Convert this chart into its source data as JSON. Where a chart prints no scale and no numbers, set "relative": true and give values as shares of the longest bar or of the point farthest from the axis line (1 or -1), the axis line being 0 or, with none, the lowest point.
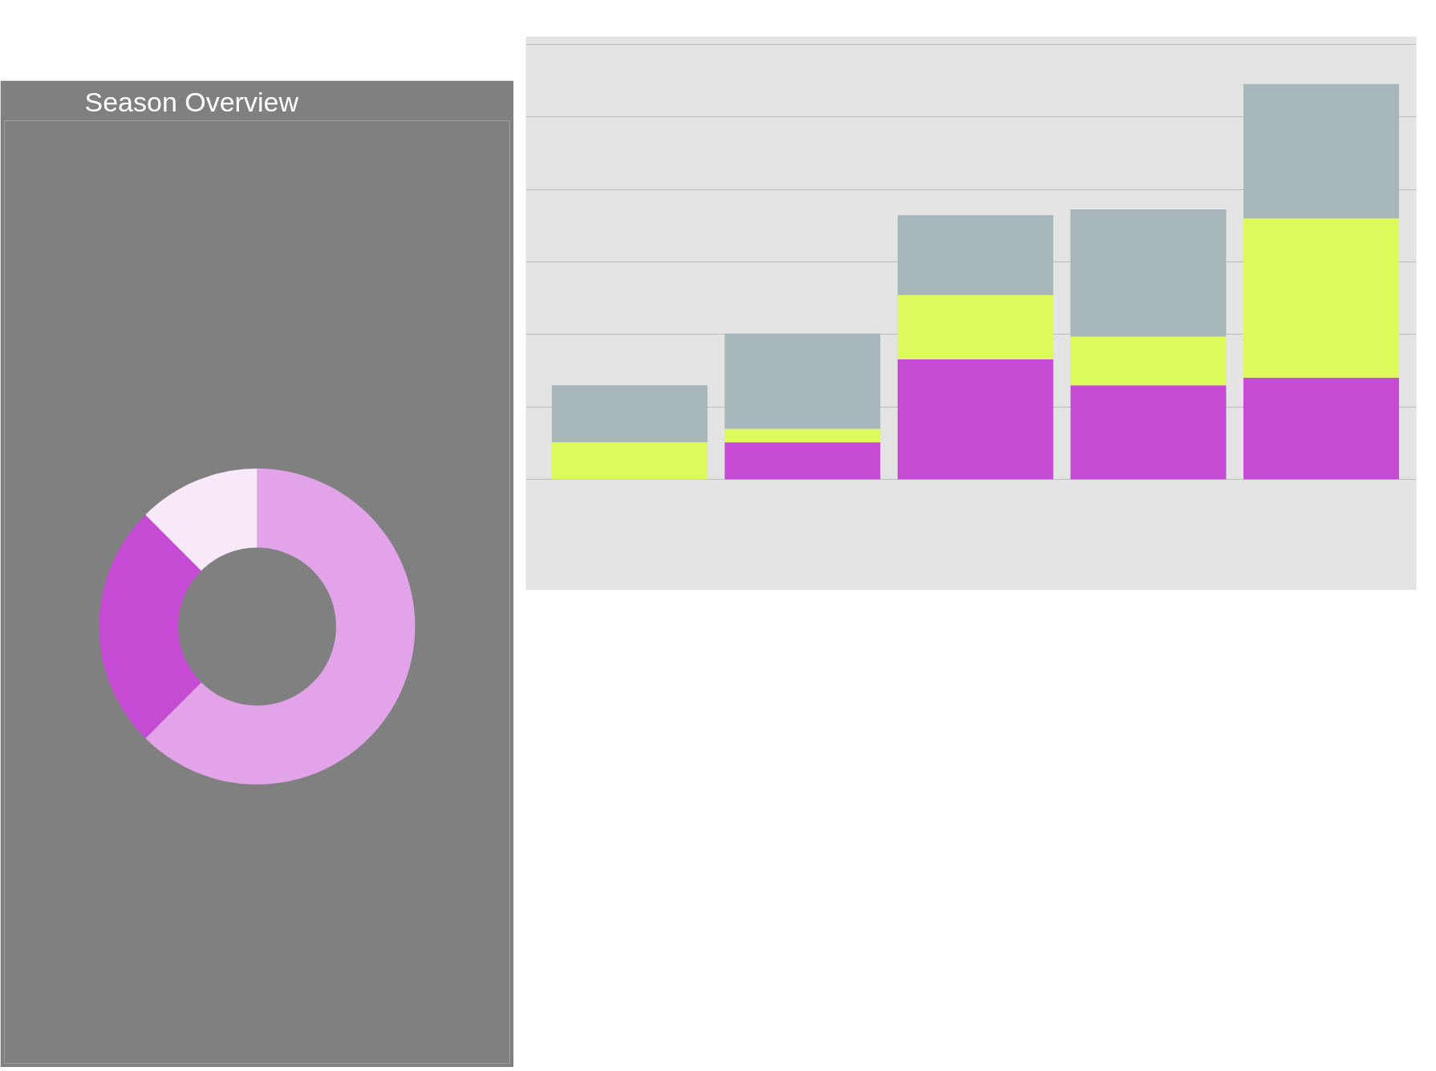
{
  "chart_data": [
    {
      "type": "donut",
      "title": "Season Overview",
      "categories": [
        null,
        null,
        null
      ],
      "values": [
        62.5,
        25,
        12.5
      ],
      "colors": [
        "#e2a3e8",
        "#c64bd4",
        "#f8e9f9"
      ]
    },
    {
      "type": "bar",
      "stacked": true,
      "relative": true,
      "grid": "y",
      "categories": [
        null,
        null,
        null,
        null,
        null
      ],
      "series": [
        {
          "color": "#c64bd4",
          "values": [
            0,
            0.094,
            0.304,
            0.238,
            0.257
          ]
        },
        {
          "color": "#dcfa5a",
          "values": [
            0.094,
            0.034,
            0.162,
            0.123,
            0.403
          ]
        },
        {
          "color": "#a6b6b9",
          "values": [
            0.144,
            0.241,
            0.202,
            0.322,
            0.34
          ]
        }
      ]
    }
  ]
}
